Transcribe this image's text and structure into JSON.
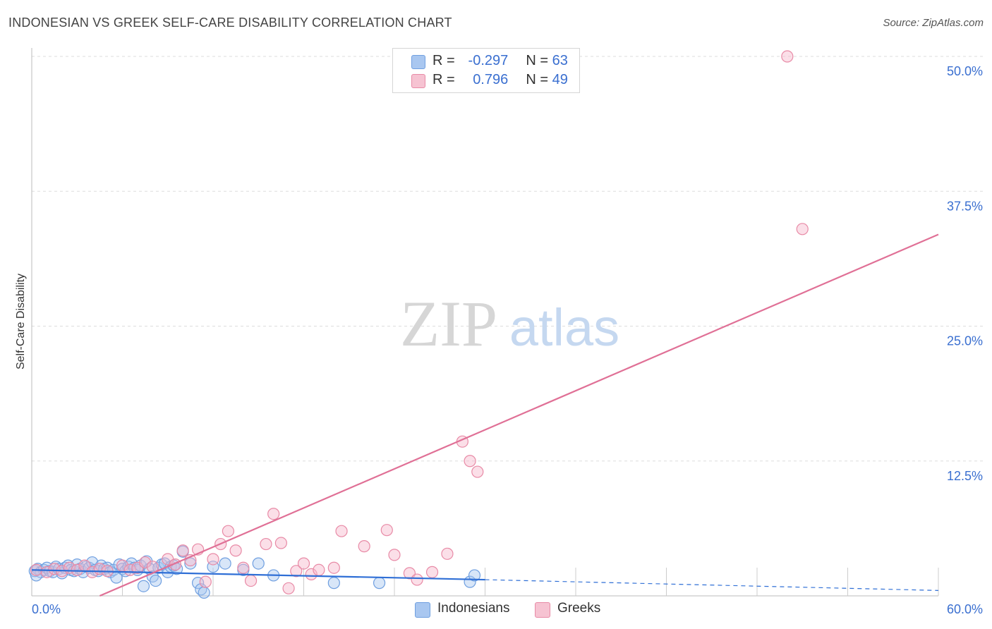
{
  "chart_data": {
    "type": "scatter",
    "title": "INDONESIAN VS GREEK SELF-CARE DISABILITY CORRELATION CHART",
    "source": "Source: ZipAtlas.com",
    "xlabel": "",
    "ylabel": "Self-Care Disability",
    "xlim": [
      0,
      60
    ],
    "ylim": [
      0,
      50
    ],
    "x_ticks": [
      "0.0%",
      "60.0%"
    ],
    "y_ticks": [
      {
        "value": 12.5,
        "label": "12.5%"
      },
      {
        "value": 25.0,
        "label": "25.0%"
      },
      {
        "value": 37.5,
        "label": "37.5%"
      },
      {
        "value": 50.0,
        "label": "50.0%"
      }
    ],
    "watermark": {
      "zip": "ZIP",
      "atlas": "atlas"
    },
    "legend": [
      {
        "r_label": "R =",
        "r_value": "-0.297",
        "n_label": "N =",
        "n_value": "63"
      },
      {
        "r_label": "R =",
        "r_value": "0.796",
        "n_label": "N =",
        "n_value": "49"
      }
    ],
    "series": [
      {
        "name": "Indonesians",
        "color": "#6f9fe0",
        "fill": "#a9c7f0",
        "trend": {
          "x0": 0,
          "y0": 2.4,
          "x1": 30,
          "y1": 1.5,
          "dash_x1": 60,
          "dash_y1": 0.5,
          "color": "#2f6fd6"
        },
        "points": [
          [
            0.2,
            2.3
          ],
          [
            0.4,
            2.5
          ],
          [
            0.6,
            2.2
          ],
          [
            0.8,
            2.4
          ],
          [
            1.0,
            2.6
          ],
          [
            1.2,
            2.3
          ],
          [
            1.4,
            2.2
          ],
          [
            1.6,
            2.7
          ],
          [
            1.8,
            2.5
          ],
          [
            2.0,
            2.1
          ],
          [
            2.2,
            2.6
          ],
          [
            2.4,
            2.8
          ],
          [
            2.6,
            2.4
          ],
          [
            2.8,
            2.3
          ],
          [
            3.0,
            2.9
          ],
          [
            3.2,
            2.5
          ],
          [
            3.4,
            2.2
          ],
          [
            3.6,
            2.7
          ],
          [
            3.8,
            2.6
          ],
          [
            4.0,
            3.1
          ],
          [
            4.2,
            2.4
          ],
          [
            4.4,
            2.3
          ],
          [
            4.6,
            2.8
          ],
          [
            4.8,
            2.5
          ],
          [
            5.0,
            2.6
          ],
          [
            5.2,
            2.2
          ],
          [
            5.4,
            2.4
          ],
          [
            5.6,
            1.7
          ],
          [
            5.8,
            2.9
          ],
          [
            6.0,
            2.5
          ],
          [
            6.2,
            2.3
          ],
          [
            6.4,
            2.7
          ],
          [
            6.6,
            3.0
          ],
          [
            6.8,
            2.6
          ],
          [
            7.0,
            2.4
          ],
          [
            7.2,
            2.8
          ],
          [
            7.4,
            0.9
          ],
          [
            7.6,
            3.2
          ],
          [
            7.8,
            2.5
          ],
          [
            8.0,
            1.8
          ],
          [
            8.2,
            1.4
          ],
          [
            8.4,
            2.6
          ],
          [
            8.6,
            2.9
          ],
          [
            8.8,
            3.0
          ],
          [
            9.0,
            2.2
          ],
          [
            9.2,
            2.7
          ],
          [
            9.4,
            2.8
          ],
          [
            9.6,
            2.5
          ],
          [
            10.0,
            4.1
          ],
          [
            10.5,
            3.0
          ],
          [
            11.0,
            1.2
          ],
          [
            11.2,
            0.6
          ],
          [
            11.4,
            0.3
          ],
          [
            12.0,
            2.7
          ],
          [
            12.8,
            3.0
          ],
          [
            14.0,
            2.4
          ],
          [
            15.0,
            3.0
          ],
          [
            16.0,
            1.9
          ],
          [
            20.0,
            1.2
          ],
          [
            23.0,
            1.2
          ],
          [
            29.0,
            1.3
          ],
          [
            29.3,
            1.9
          ],
          [
            0.3,
            1.9
          ]
        ]
      },
      {
        "name": "Greeks",
        "color": "#e88aa6",
        "fill": "#f6b8cb",
        "trend": {
          "x0": 4.5,
          "y0": 0,
          "x1": 60,
          "y1": 33.5,
          "color": "#e07096"
        },
        "points": [
          [
            0.3,
            2.4
          ],
          [
            1.0,
            2.2
          ],
          [
            1.5,
            2.5
          ],
          [
            2.0,
            2.3
          ],
          [
            2.5,
            2.6
          ],
          [
            3.0,
            2.4
          ],
          [
            3.5,
            2.8
          ],
          [
            4.0,
            2.2
          ],
          [
            4.5,
            2.5
          ],
          [
            5.0,
            2.3
          ],
          [
            6.0,
            2.8
          ],
          [
            6.5,
            2.4
          ],
          [
            7.0,
            2.6
          ],
          [
            7.5,
            3.1
          ],
          [
            8.0,
            2.7
          ],
          [
            9.0,
            3.4
          ],
          [
            9.5,
            2.9
          ],
          [
            10.0,
            4.2
          ],
          [
            10.5,
            3.3
          ],
          [
            11.0,
            4.3
          ],
          [
            11.5,
            1.3
          ],
          [
            12.0,
            3.4
          ],
          [
            12.5,
            4.8
          ],
          [
            13.0,
            6.0
          ],
          [
            13.5,
            4.2
          ],
          [
            14.0,
            2.6
          ],
          [
            14.5,
            1.4
          ],
          [
            15.5,
            4.8
          ],
          [
            16.0,
            7.6
          ],
          [
            16.5,
            4.9
          ],
          [
            17.0,
            0.7
          ],
          [
            17.5,
            2.3
          ],
          [
            18.0,
            3.0
          ],
          [
            18.5,
            2.0
          ],
          [
            19.0,
            2.4
          ],
          [
            20.0,
            2.6
          ],
          [
            20.5,
            6.0
          ],
          [
            22.0,
            4.6
          ],
          [
            23.5,
            6.1
          ],
          [
            24.0,
            3.8
          ],
          [
            25.0,
            2.1
          ],
          [
            25.5,
            1.5
          ],
          [
            26.5,
            2.2
          ],
          [
            27.5,
            3.9
          ],
          [
            28.5,
            14.3
          ],
          [
            29.0,
            12.5
          ],
          [
            29.5,
            11.5
          ],
          [
            50.0,
            50.0
          ],
          [
            51.0,
            34.0
          ]
        ]
      }
    ]
  }
}
